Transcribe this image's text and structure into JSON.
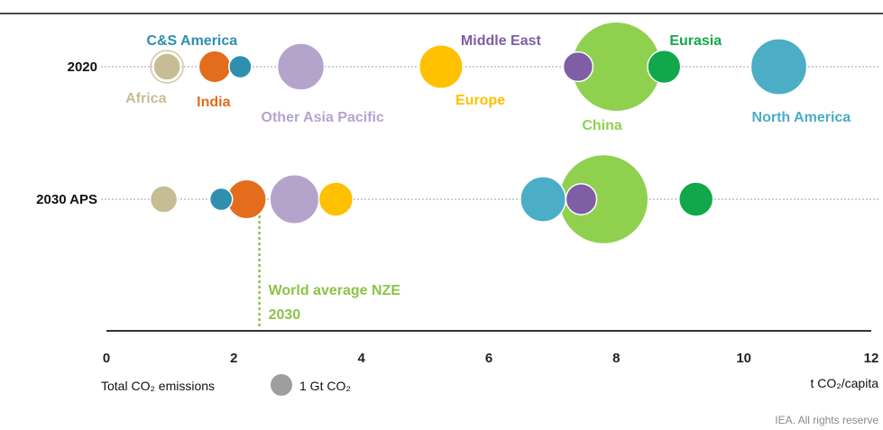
{
  "chart_data": {
    "type": "scatter",
    "rows": [
      "2020",
      "2030 APS"
    ],
    "x_axis": {
      "ticks": [
        0,
        2,
        4,
        6,
        8,
        10,
        12
      ],
      "xlim": [
        0,
        12
      ],
      "unit_label": "t CO₂/capita"
    },
    "size_legend": {
      "label": "Total CO₂ emissions",
      "value_label": "1 Gt CO₂",
      "value_gt": 1,
      "color": "#9e9e9e"
    },
    "series": [
      {
        "name": "Africa",
        "color": "#c6bd94",
        "label_color": "#c6bd94",
        "values": {
          "2020": {
            "x": 0.95,
            "gt": 1.0
          },
          "2030 APS": {
            "x": 0.9,
            "gt": 1.0
          }
        }
      },
      {
        "name": "India",
        "color": "#e36c1d",
        "label_color": "#e36c1d",
        "values": {
          "2020": {
            "x": 1.7,
            "gt": 1.4
          },
          "2030 APS": {
            "x": 2.2,
            "gt": 2.1
          }
        }
      },
      {
        "name": "C&S America",
        "color": "#2e90ae",
        "label_color": "#2e90ae",
        "values": {
          "2020": {
            "x": 2.1,
            "gt": 0.7
          },
          "2030 APS": {
            "x": 1.8,
            "gt": 0.7
          }
        }
      },
      {
        "name": "Other Asia Pacific",
        "color": "#b4a4cc",
        "label_color": "#b4a4cc",
        "values": {
          "2020": {
            "x": 3.05,
            "gt": 3.0
          },
          "2030 APS": {
            "x": 2.95,
            "gt": 3.3
          }
        }
      },
      {
        "name": "Europe",
        "color": "#ffc000",
        "label_color": "#ffc000",
        "values": {
          "2020": {
            "x": 5.25,
            "gt": 2.6
          },
          "2030 APS": {
            "x": 3.6,
            "gt": 1.6
          }
        }
      },
      {
        "name": "Middle East",
        "color": "#7e5ea5",
        "label_color": "#7e5ea5",
        "values": {
          "2020": {
            "x": 7.4,
            "gt": 1.2
          },
          "2030 APS": {
            "x": 7.45,
            "gt": 1.3
          }
        }
      },
      {
        "name": "China",
        "color": "#8fd14f",
        "label_color": "#8fd14f",
        "values": {
          "2020": {
            "x": 8.0,
            "gt": 11.0
          },
          "2030 APS": {
            "x": 7.8,
            "gt": 10.9
          }
        }
      },
      {
        "name": "Eurasia",
        "color": "#11a84b",
        "label_color": "#11a84b",
        "values": {
          "2020": {
            "x": 8.75,
            "gt": 1.5
          },
          "2030 APS": {
            "x": 9.25,
            "gt": 1.6
          }
        }
      },
      {
        "name": "North America",
        "color": "#4badc6",
        "label_color": "#4badc6",
        "values": {
          "2020": {
            "x": 10.55,
            "gt": 4.3
          },
          "2030 APS": {
            "x": 6.85,
            "gt": 2.8
          }
        }
      }
    ],
    "reference_line": {
      "label_line1": "World average NZE",
      "label_line2": "2030",
      "x": 2.4,
      "color": "#8bc34a"
    },
    "credit": "IEA. All rights reserve"
  }
}
